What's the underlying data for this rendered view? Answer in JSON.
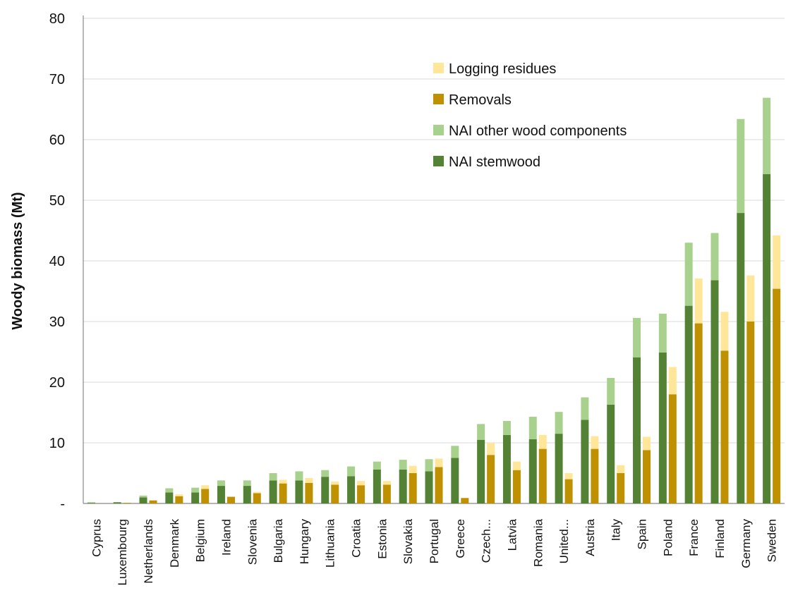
{
  "chart_data": {
    "type": "bar",
    "ylabel": "Woody biomass (Mt)",
    "ylim": [
      0,
      80
    ],
    "yticks": [
      {
        "value": 0,
        "label": "-"
      },
      {
        "value": 10,
        "label": "10"
      },
      {
        "value": 20,
        "label": "20"
      },
      {
        "value": 30,
        "label": "30"
      },
      {
        "value": 40,
        "label": "40"
      },
      {
        "value": 50,
        "label": "50"
      },
      {
        "value": 60,
        "label": "60"
      },
      {
        "value": 70,
        "label": "70"
      },
      {
        "value": 80,
        "label": "80"
      }
    ],
    "grid": true,
    "legend_position": "top-right",
    "categories": [
      "Cyprus",
      "Luxembourg",
      "Netherlands",
      "Denmark",
      "Belgium",
      "Ireland",
      "Slovenia",
      "Bulgaria",
      "Hungary",
      "Lithuania",
      "Croatia",
      "Estonia",
      "Slovakia",
      "Portugal",
      "Greece",
      "Czech...",
      "Latvia",
      "Romania",
      "United...",
      "Austria",
      "Italy",
      "Spain",
      "Poland",
      "France",
      "Finland",
      "Germany",
      "Sweden"
    ],
    "stacks": [
      {
        "name": "NAI",
        "series": [
          {
            "name": "NAI stemwood",
            "color": "#548235",
            "values": [
              0.1,
              0.2,
              1.0,
              1.8,
              1.8,
              2.9,
              2.9,
              3.8,
              3.8,
              4.4,
              4.5,
              5.6,
              5.6,
              5.3,
              7.5,
              10.5,
              11.3,
              10.6,
              11.5,
              13.8,
              16.3,
              24.1,
              24.9,
              32.6,
              36.8,
              47.9,
              54.3
            ]
          },
          {
            "name": "NAI other wood components",
            "color": "#a9d18e",
            "values": [
              0.1,
              0.0,
              0.3,
              0.7,
              0.8,
              0.9,
              0.9,
              1.2,
              1.5,
              1.1,
              1.6,
              1.3,
              1.6,
              2.0,
              2.0,
              2.6,
              2.3,
              3.7,
              3.6,
              3.7,
              4.4,
              6.5,
              6.4,
              10.4,
              7.8,
              15.5,
              12.6
            ]
          }
        ]
      },
      {
        "name": "Harvest",
        "series": [
          {
            "name": "Removals",
            "color": "#bf9000",
            "values": [
              0.0,
              0.1,
              0.5,
              1.2,
              2.4,
              1.1,
              1.7,
              3.3,
              3.4,
              3.1,
              3.0,
              3.1,
              5.0,
              6.0,
              0.9,
              8.0,
              5.5,
              9.0,
              4.0,
              9.0,
              5.0,
              8.8,
              18.0,
              29.7,
              25.2,
              30.0,
              35.4
            ]
          },
          {
            "name": "Logging residues",
            "color": "#ffe699",
            "values": [
              0.0,
              0.0,
              0.0,
              0.3,
              0.6,
              0.0,
              0.2,
              0.6,
              0.8,
              0.5,
              0.7,
              0.6,
              1.2,
              1.4,
              0.0,
              2.0,
              1.4,
              2.3,
              1.0,
              2.1,
              1.3,
              2.2,
              4.5,
              7.4,
              6.4,
              7.6,
              8.8
            ]
          }
        ]
      }
    ],
    "legend": [
      "Logging residues",
      "Removals",
      "NAI other wood components",
      "NAI stemwood"
    ]
  }
}
